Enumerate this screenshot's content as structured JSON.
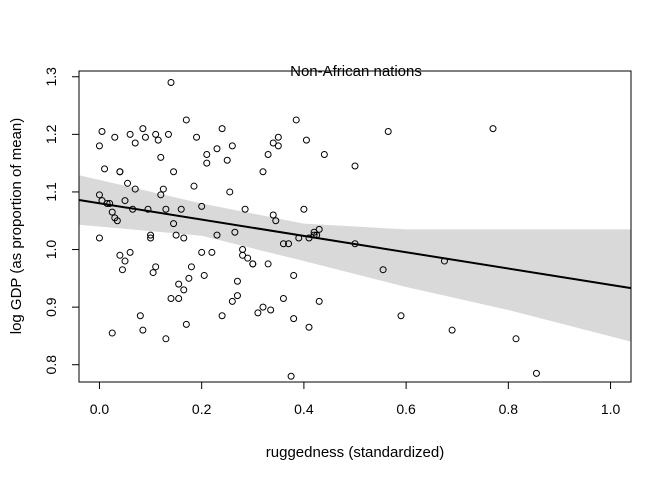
{
  "chart_data": {
    "type": "scatter",
    "title": "Non-African nations",
    "xlabel": "ruggedness (standardized)",
    "ylabel": "log GDP (as proportion of mean)",
    "xlim": [
      -0.04,
      1.04
    ],
    "ylim": [
      0.77,
      1.31
    ],
    "x_ticks": [
      0.0,
      0.2,
      0.4,
      0.6,
      0.8,
      1.0
    ],
    "x_tick_labels": [
      "0.0",
      "0.2",
      "0.4",
      "0.6",
      "0.8",
      "1.0"
    ],
    "y_ticks": [
      0.8,
      0.9,
      1.0,
      1.1,
      1.2,
      1.3
    ],
    "y_tick_labels": [
      "0.8",
      "0.9",
      "1.0",
      "1.1",
      "1.2",
      "1.3"
    ],
    "grid": false,
    "legend": "none",
    "regression_line": {
      "x": [
        -0.04,
        1.04
      ],
      "y": [
        1.086,
        0.933
      ]
    },
    "confidence_band": {
      "x": [
        -0.04,
        0.2,
        0.4,
        0.6,
        0.8,
        1.04
      ],
      "upper": [
        1.129,
        1.08,
        1.045,
        1.035,
        1.035,
        1.035
      ],
      "lower": [
        1.043,
        1.024,
        0.98,
        0.935,
        0.895,
        0.84
      ]
    },
    "line_color": "#000000",
    "band_color": "#d9d9d9",
    "points": {
      "x": [
        0.0,
        0.0,
        0.005,
        0.01,
        0.02,
        0.025,
        0.03,
        0.035,
        0.04,
        0.04,
        0.045,
        0.05,
        0.055,
        0.06,
        0.065,
        0.07,
        0.08,
        0.085,
        0.09,
        0.095,
        0.1,
        0.105,
        0.11,
        0.115,
        0.12,
        0.125,
        0.13,
        0.135,
        0.14,
        0.145,
        0.15,
        0.155,
        0.16,
        0.165,
        0.17,
        0.175,
        0.18,
        0.185,
        0.19,
        0.2,
        0.205,
        0.21,
        0.22,
        0.23,
        0.24,
        0.25,
        0.255,
        0.26,
        0.265,
        0.27,
        0.28,
        0.285,
        0.29,
        0.3,
        0.31,
        0.32,
        0.33,
        0.335,
        0.34,
        0.345,
        0.35,
        0.36,
        0.37,
        0.375,
        0.38,
        0.385,
        0.39,
        0.4,
        0.405,
        0.41,
        0.42,
        0.425,
        0.43,
        0.44,
        0.5,
        0.5,
        0.555,
        0.565,
        0.59,
        0.675,
        0.69,
        0.77,
        0.815,
        0.855,
        0.0,
        0.005,
        0.015,
        0.03,
        0.04,
        0.05,
        0.06,
        0.07,
        0.085,
        0.1,
        0.11,
        0.12,
        0.13,
        0.14,
        0.145,
        0.155,
        0.165,
        0.17,
        0.2,
        0.21,
        0.23,
        0.24,
        0.26,
        0.27,
        0.28,
        0.3,
        0.32,
        0.33,
        0.34,
        0.35,
        0.36,
        0.38,
        0.41,
        0.42,
        0.43,
        0.025
      ],
      "y": [
        1.02,
        1.095,
        1.085,
        1.14,
        1.08,
        1.065,
        1.055,
        1.05,
        1.135,
        0.99,
        0.965,
        0.98,
        1.115,
        1.2,
        1.07,
        1.185,
        0.885,
        1.21,
        1.195,
        1.07,
        1.025,
        0.96,
        1.2,
        1.19,
        1.16,
        1.105,
        0.845,
        1.2,
        1.29,
        1.135,
        1.025,
        0.94,
        1.07,
        1.02,
        1.225,
        0.95,
        0.97,
        1.11,
        1.195,
        1.075,
        0.955,
        1.15,
        0.995,
        1.175,
        1.21,
        1.155,
        1.1,
        1.18,
        1.03,
        0.92,
        0.99,
        1.07,
        0.985,
        0.975,
        0.89,
        1.135,
        1.165,
        0.895,
        1.185,
        1.05,
        1.195,
        1.01,
        1.01,
        0.78,
        0.88,
        1.225,
        1.02,
        1.07,
        1.19,
        0.865,
        1.03,
        1.025,
        0.91,
        1.165,
        1.01,
        1.145,
        0.965,
        1.205,
        0.885,
        0.98,
        0.86,
        1.21,
        0.845,
        0.785,
        1.18,
        1.205,
        1.08,
        1.195,
        1.135,
        1.085,
        0.995,
        1.105,
        0.86,
        1.02,
        0.97,
        1.095,
        1.07,
        0.915,
        1.045,
        0.915,
        0.93,
        0.87,
        0.995,
        1.165,
        1.025,
        0.885,
        0.91,
        0.945,
        1.0,
        0.975,
        0.9,
        0.975,
        1.06,
        1.18,
        0.915,
        0.955,
        1.02,
        1.025,
        1.035,
        0.855
      ]
    }
  }
}
